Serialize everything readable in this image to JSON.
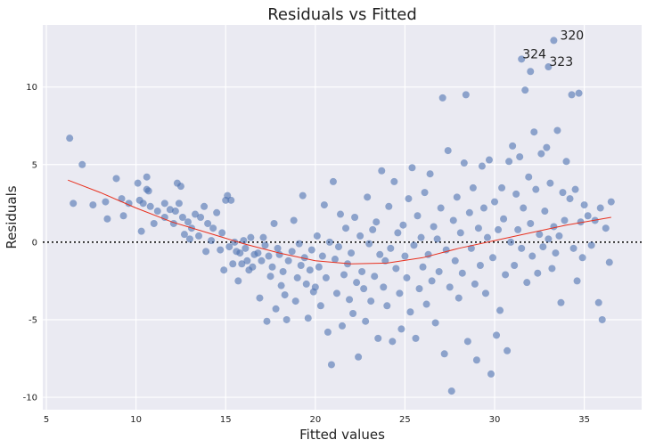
{
  "chart_data": {
    "type": "scatter",
    "title": "Residuals vs Fitted",
    "xlabel": "Fitted values",
    "ylabel": "Residuals",
    "xlim": [
      4.8,
      38.2
    ],
    "ylim": [
      -10.8,
      14.0
    ],
    "xticks": [
      5,
      10,
      15,
      20,
      25,
      30,
      35
    ],
    "yticks": [
      -10,
      -5,
      0,
      5,
      10
    ],
    "grid": true,
    "background": "#EAEAF2",
    "grid_color": "#ffffff",
    "point_color": "#4C72B0",
    "smooth_color": "#E8301E",
    "reference_line": {
      "y": 0,
      "style": "dotted",
      "color": "#222222"
    },
    "annotations": [
      {
        "text": "320",
        "x": 33.6,
        "y": 13.0
      },
      {
        "text": "324",
        "x": 31.5,
        "y": 11.8
      },
      {
        "text": "323",
        "x": 33.0,
        "y": 11.3
      }
    ],
    "smooth_line": {
      "x": [
        6.2,
        8,
        10,
        12,
        14,
        16,
        18,
        20,
        22,
        24,
        26,
        28,
        30,
        32,
        34,
        36.5
      ],
      "y": [
        4.0,
        3.2,
        2.2,
        1.3,
        0.6,
        -0.1,
        -0.7,
        -1.2,
        -1.4,
        -1.35,
        -1.0,
        -0.4,
        0.1,
        0.6,
        1.1,
        1.6
      ]
    },
    "points": [
      [
        6.3,
        6.7
      ],
      [
        6.5,
        2.5
      ],
      [
        7.0,
        5.0
      ],
      [
        7.6,
        2.4
      ],
      [
        8.3,
        2.6
      ],
      [
        8.4,
        1.5
      ],
      [
        8.9,
        4.1
      ],
      [
        9.2,
        2.8
      ],
      [
        9.3,
        1.7
      ],
      [
        9.6,
        2.5
      ],
      [
        10.1,
        3.8
      ],
      [
        10.2,
        2.7
      ],
      [
        10.3,
        0.7
      ],
      [
        10.4,
        2.5
      ],
      [
        10.6,
        3.4
      ],
      [
        10.6,
        4.2
      ],
      [
        10.7,
        3.3
      ],
      [
        10.8,
        2.3
      ],
      [
        11.0,
        1.2
      ],
      [
        11.2,
        2.0
      ],
      [
        11.6,
        2.5
      ],
      [
        11.6,
        1.6
      ],
      [
        11.9,
        2.1
      ],
      [
        12.1,
        1.2
      ],
      [
        12.2,
        2.0
      ],
      [
        12.3,
        3.8
      ],
      [
        12.4,
        2.5
      ],
      [
        12.5,
        3.6
      ],
      [
        12.6,
        1.6
      ],
      [
        12.7,
        0.5
      ],
      [
        12.9,
        1.3
      ],
      [
        13.0,
        0.2
      ],
      [
        13.1,
        0.9
      ],
      [
        13.3,
        1.8
      ],
      [
        13.5,
        0.4
      ],
      [
        13.6,
        1.6
      ],
      [
        13.8,
        2.3
      ],
      [
        13.9,
        -0.6
      ],
      [
        14.0,
        1.2
      ],
      [
        14.2,
        0.1
      ],
      [
        14.3,
        0.9
      ],
      [
        14.5,
        1.9
      ],
      [
        14.7,
        -0.5
      ],
      [
        14.8,
        0.6
      ],
      [
        14.9,
        -1.8
      ],
      [
        15.0,
        2.7
      ],
      [
        15.1,
        3.0
      ],
      [
        15.2,
        -0.3
      ],
      [
        15.3,
        2.7
      ],
      [
        15.4,
        -1.4
      ],
      [
        15.5,
        0.0
      ],
      [
        15.6,
        -0.6
      ],
      [
        15.7,
        -2.5
      ],
      [
        15.8,
        -0.7
      ],
      [
        15.9,
        -1.4
      ],
      [
        16.0,
        0.1
      ],
      [
        16.1,
        -0.4
      ],
      [
        16.2,
        -1.2
      ],
      [
        16.3,
        -1.8
      ],
      [
        16.4,
        0.3
      ],
      [
        16.5,
        -1.6
      ],
      [
        16.6,
        -0.8
      ],
      [
        16.8,
        -0.7
      ],
      [
        16.9,
        -3.6
      ],
      [
        17.0,
        -1.2
      ],
      [
        17.1,
        0.3
      ],
      [
        17.2,
        -0.2
      ],
      [
        17.3,
        -5.1
      ],
      [
        17.4,
        -0.9
      ],
      [
        17.5,
        -2.2
      ],
      [
        17.6,
        -1.6
      ],
      [
        17.7,
        1.2
      ],
      [
        17.8,
        -4.3
      ],
      [
        17.9,
        -0.4
      ],
      [
        18.0,
        -0.8
      ],
      [
        18.1,
        -2.8
      ],
      [
        18.2,
        -1.9
      ],
      [
        18.3,
        -3.4
      ],
      [
        18.4,
        -5.0
      ],
      [
        18.5,
        -1.2
      ],
      [
        18.7,
        -0.6
      ],
      [
        18.8,
        1.4
      ],
      [
        18.9,
        -3.8
      ],
      [
        19.0,
        -2.3
      ],
      [
        19.1,
        -0.1
      ],
      [
        19.2,
        -1.5
      ],
      [
        19.3,
        3.0
      ],
      [
        19.4,
        -1.0
      ],
      [
        19.5,
        -2.7
      ],
      [
        19.6,
        -4.9
      ],
      [
        19.7,
        -1.8
      ],
      [
        19.8,
        -0.5
      ],
      [
        19.9,
        -3.2
      ],
      [
        20.0,
        -2.9
      ],
      [
        20.1,
        0.4
      ],
      [
        20.2,
        -1.6
      ],
      [
        20.3,
        -4.1
      ],
      [
        20.4,
        -0.9
      ],
      [
        20.5,
        2.4
      ],
      [
        20.6,
        -2.3
      ],
      [
        20.7,
        -5.8
      ],
      [
        20.8,
        0.0
      ],
      [
        20.9,
        -7.9
      ],
      [
        21.0,
        3.9
      ],
      [
        21.1,
        -1.1
      ],
      [
        21.2,
        -3.3
      ],
      [
        21.3,
        -0.3
      ],
      [
        21.4,
        1.8
      ],
      [
        21.5,
        -5.4
      ],
      [
        21.6,
        -2.1
      ],
      [
        21.7,
        0.9
      ],
      [
        21.8,
        -1.4
      ],
      [
        21.9,
        -3.7
      ],
      [
        22.0,
        -0.7
      ],
      [
        22.1,
        -4.6
      ],
      [
        22.2,
        1.6
      ],
      [
        22.3,
        -2.6
      ],
      [
        22.4,
        -7.4
      ],
      [
        22.5,
        0.4
      ],
      [
        22.6,
        -1.9
      ],
      [
        22.7,
        -3.0
      ],
      [
        22.8,
        -5.1
      ],
      [
        22.9,
        2.9
      ],
      [
        23.0,
        -0.1
      ],
      [
        23.1,
        -3.8
      ],
      [
        23.2,
        0.8
      ],
      [
        23.3,
        -2.2
      ],
      [
        23.4,
        1.3
      ],
      [
        23.5,
        -6.2
      ],
      [
        23.6,
        -0.8
      ],
      [
        23.7,
        4.6
      ],
      [
        23.8,
        -2.9
      ],
      [
        23.9,
        -1.2
      ],
      [
        24.0,
        -4.1
      ],
      [
        24.1,
        2.3
      ],
      [
        24.2,
        -0.4
      ],
      [
        24.3,
        -6.4
      ],
      [
        24.4,
        3.9
      ],
      [
        24.5,
        -1.7
      ],
      [
        24.6,
        0.6
      ],
      [
        24.7,
        -3.3
      ],
      [
        24.8,
        -5.6
      ],
      [
        24.9,
        1.1
      ],
      [
        25.0,
        -0.9
      ],
      [
        25.1,
        -2.3
      ],
      [
        25.2,
        2.8
      ],
      [
        25.3,
        -4.5
      ],
      [
        25.4,
        4.8
      ],
      [
        25.5,
        -0.2
      ],
      [
        25.6,
        -6.2
      ],
      [
        25.7,
        1.7
      ],
      [
        25.8,
        -3.0
      ],
      [
        25.9,
        0.3
      ],
      [
        26.0,
        -1.6
      ],
      [
        26.1,
        3.2
      ],
      [
        26.2,
        -4.0
      ],
      [
        26.3,
        -0.8
      ],
      [
        26.4,
        4.4
      ],
      [
        26.5,
        -2.5
      ],
      [
        26.6,
        1.0
      ],
      [
        26.7,
        -5.2
      ],
      [
        26.8,
        0.2
      ],
      [
        26.9,
        -1.9
      ],
      [
        27.0,
        2.2
      ],
      [
        27.1,
        9.3
      ],
      [
        27.2,
        -7.2
      ],
      [
        27.3,
        -0.5
      ],
      [
        27.4,
        5.9
      ],
      [
        27.5,
        -2.9
      ],
      [
        27.6,
        -9.6
      ],
      [
        27.7,
        1.4
      ],
      [
        27.8,
        -1.2
      ],
      [
        27.9,
        2.9
      ],
      [
        28.0,
        -3.6
      ],
      [
        28.1,
        0.6
      ],
      [
        28.2,
        -2.0
      ],
      [
        28.3,
        5.1
      ],
      [
        28.4,
        9.5
      ],
      [
        28.5,
        -6.4
      ],
      [
        28.6,
        1.9
      ],
      [
        28.7,
        -0.4
      ],
      [
        28.8,
        3.5
      ],
      [
        28.9,
        -2.7
      ],
      [
        29.0,
        -7.6
      ],
      [
        29.1,
        0.9
      ],
      [
        29.2,
        -1.5
      ],
      [
        29.3,
        4.9
      ],
      [
        29.4,
        2.2
      ],
      [
        29.5,
        -3.3
      ],
      [
        29.6,
        0.3
      ],
      [
        29.7,
        5.3
      ],
      [
        29.8,
        -8.5
      ],
      [
        29.9,
        -1.0
      ],
      [
        30.0,
        2.6
      ],
      [
        30.1,
        -6.0
      ],
      [
        30.2,
        0.8
      ],
      [
        30.3,
        -4.4
      ],
      [
        30.4,
        3.5
      ],
      [
        30.5,
        1.5
      ],
      [
        30.6,
        -2.1
      ],
      [
        30.7,
        -7.0
      ],
      [
        30.8,
        5.2
      ],
      [
        30.9,
        0.0
      ],
      [
        31.0,
        6.2
      ],
      [
        31.1,
        -1.5
      ],
      [
        31.2,
        3.1
      ],
      [
        31.3,
        0.8
      ],
      [
        31.4,
        5.5
      ],
      [
        31.5,
        -0.4
      ],
      [
        31.6,
        2.2
      ],
      [
        31.7,
        9.8
      ],
      [
        31.8,
        -2.6
      ],
      [
        31.9,
        4.2
      ],
      [
        32.0,
        1.2
      ],
      [
        32.1,
        -0.9
      ],
      [
        32.2,
        7.1
      ],
      [
        32.3,
        3.4
      ],
      [
        32.4,
        -2.0
      ],
      [
        32.5,
        0.5
      ],
      [
        32.6,
        5.7
      ],
      [
        32.7,
        -0.3
      ],
      [
        32.8,
        2.0
      ],
      [
        32.9,
        6.1
      ],
      [
        33.0,
        0.2
      ],
      [
        33.1,
        3.8
      ],
      [
        33.2,
        -1.7
      ],
      [
        33.3,
        1.0
      ],
      [
        33.4,
        -0.7
      ],
      [
        33.5,
        7.2
      ],
      [
        33.6,
        0.4
      ],
      [
        33.7,
        -3.9
      ],
      [
        33.8,
        3.2
      ],
      [
        33.9,
        1.4
      ],
      [
        34.0,
        5.2
      ],
      [
        34.2,
        2.8
      ],
      [
        34.3,
        9.5
      ],
      [
        34.4,
        -0.4
      ],
      [
        34.5,
        3.4
      ],
      [
        34.6,
        -2.5
      ],
      [
        34.7,
        9.6
      ],
      [
        34.8,
        1.3
      ],
      [
        34.9,
        -1.0
      ],
      [
        35.0,
        2.4
      ],
      [
        35.2,
        1.7
      ],
      [
        35.4,
        -0.2
      ],
      [
        35.6,
        1.4
      ],
      [
        35.8,
        -3.9
      ],
      [
        35.9,
        2.2
      ],
      [
        36.0,
        -5.0
      ],
      [
        36.2,
        0.9
      ],
      [
        36.4,
        -1.3
      ],
      [
        36.5,
        2.6
      ],
      [
        31.5,
        11.8
      ],
      [
        32.0,
        11.0
      ],
      [
        33.0,
        11.3
      ],
      [
        33.3,
        13.0
      ]
    ]
  }
}
